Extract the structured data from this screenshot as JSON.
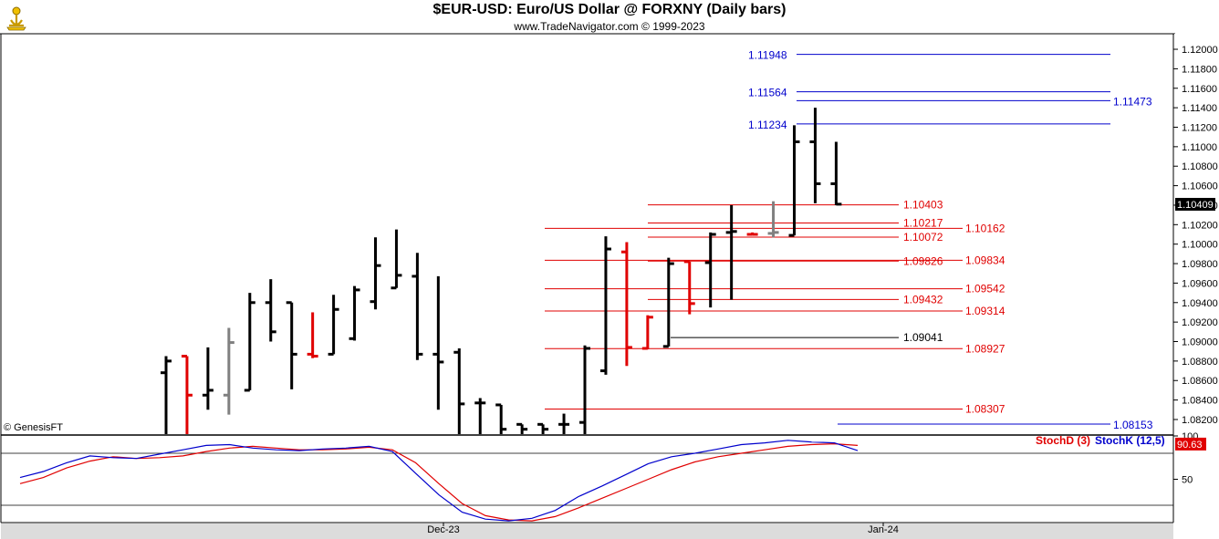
{
  "window": {
    "title": "$EUR-USD:  Euro/US Dollar @ FORXNY  (Daily bars)",
    "subtitle": "www.TradeNavigator.com © 1999-2023",
    "watermark": "© GenesisFT"
  },
  "chart_data": {
    "type": "ohlc",
    "price_axis": {
      "range": [
        1.0805,
        1.1215
      ],
      "ticks": [
        "1.12000",
        "1.11800",
        "1.11600",
        "1.11400",
        "1.11200",
        "1.11000",
        "1.10800",
        "1.10600",
        "1.10400",
        "1.10200",
        "1.10000",
        "1.09800",
        "1.09600",
        "1.09400",
        "1.09200",
        "1.09000",
        "1.08800",
        "1.08600",
        "1.08400",
        "1.08200"
      ],
      "last_price": "1.10409"
    },
    "x_ticks": [
      "Dec-23",
      "Jan-24"
    ],
    "colors": {
      "up": "#000000",
      "down": "#e00000",
      "neutral": "#808080",
      "blue": "#0000cc",
      "red_level": "#e00000",
      "black_level": "#000000"
    },
    "bars": [
      {
        "o": 1.0868,
        "h": 1.0885,
        "l": 1.079,
        "c": 1.088,
        "color": "up"
      },
      {
        "o": 1.0885,
        "h": 1.0885,
        "l": 1.079,
        "c": 1.0845,
        "color": "down"
      },
      {
        "o": 1.0845,
        "h": 1.0894,
        "l": 1.083,
        "c": 1.085,
        "color": "up"
      },
      {
        "o": 1.0845,
        "h": 1.0914,
        "l": 1.0825,
        "c": 1.0899,
        "color": "neutral"
      },
      {
        "o": 1.085,
        "h": 1.095,
        "l": 1.085,
        "c": 1.094,
        "color": "up"
      },
      {
        "o": 1.094,
        "h": 1.0964,
        "l": 1.09,
        "c": 1.091,
        "color": "up"
      },
      {
        "o": 1.094,
        "h": 1.094,
        "l": 1.0851,
        "c": 1.0887,
        "color": "up"
      },
      {
        "o": 1.0887,
        "h": 1.093,
        "l": 1.0883,
        "c": 1.0885,
        "color": "down"
      },
      {
        "o": 1.0887,
        "h": 1.0948,
        "l": 1.0887,
        "c": 1.0933,
        "color": "up"
      },
      {
        "o": 1.0903,
        "h": 1.0957,
        "l": 1.0901,
        "c": 1.0953,
        "color": "up"
      },
      {
        "o": 1.0941,
        "h": 1.1007,
        "l": 1.0933,
        "c": 1.0978,
        "color": "up"
      },
      {
        "o": 1.0955,
        "h": 1.1015,
        "l": 1.0955,
        "c": 1.0968,
        "color": "up"
      },
      {
        "o": 1.0967,
        "h": 1.0991,
        "l": 1.0881,
        "c": 1.0887,
        "color": "up"
      },
      {
        "o": 1.0887,
        "h": 1.0967,
        "l": 1.083,
        "c": 1.0879,
        "color": "up"
      },
      {
        "o": 1.0889,
        "h": 1.0893,
        "l": 1.079,
        "c": 1.0836,
        "color": "up"
      },
      {
        "o": 1.0837,
        "h": 1.0842,
        "l": 1.079,
        "c": 1.0837,
        "color": "up"
      },
      {
        "o": 1.0835,
        "h": 1.0835,
        "l": 1.079,
        "c": 1.081,
        "color": "up"
      },
      {
        "o": 1.0815,
        "h": 1.0815,
        "l": 1.079,
        "c": 1.081,
        "color": "up"
      },
      {
        "o": 1.0815,
        "h": 1.0815,
        "l": 1.079,
        "c": 1.081,
        "color": "up"
      },
      {
        "o": 1.0815,
        "h": 1.0826,
        "l": 1.079,
        "c": 1.0815,
        "color": "up"
      },
      {
        "o": 1.0817,
        "h": 1.0896,
        "l": 1.079,
        "c": 1.0893,
        "color": "up"
      },
      {
        "o": 1.087,
        "h": 1.1008,
        "l": 1.0866,
        "c": 1.0995,
        "color": "up"
      },
      {
        "o": 1.0992,
        "h": 1.1002,
        "l": 1.0875,
        "c": 1.0894,
        "color": "down"
      },
      {
        "o": 1.0893,
        "h": 1.0927,
        "l": 1.0892,
        "c": 1.0925,
        "color": "down"
      },
      {
        "o": 1.0895,
        "h": 1.0986,
        "l": 1.0895,
        "c": 1.098,
        "color": "up"
      },
      {
        "o": 1.0982,
        "h": 1.0982,
        "l": 1.0928,
        "c": 1.0939,
        "color": "down"
      },
      {
        "o": 1.0981,
        "h": 1.1012,
        "l": 1.0935,
        "c": 1.101,
        "color": "up"
      },
      {
        "o": 1.1012,
        "h": 1.104,
        "l": 1.0943,
        "c": 1.1013,
        "color": "up"
      },
      {
        "o": 1.101,
        "h": 1.1012,
        "l": 1.101,
        "c": 1.101,
        "color": "down"
      },
      {
        "o": 1.1011,
        "h": 1.1044,
        "l": 1.1007,
        "c": 1.1012,
        "color": "neutral"
      },
      {
        "o": 1.1009,
        "h": 1.1122,
        "l": 1.1009,
        "c": 1.1105,
        "color": "up"
      },
      {
        "o": 1.1105,
        "h": 1.114,
        "l": 1.1042,
        "c": 1.1062,
        "color": "up"
      },
      {
        "o": 1.1062,
        "h": 1.1105,
        "l": 1.104,
        "c": 1.1041,
        "color": "up"
      }
    ],
    "levels": [
      {
        "value": 1.11948,
        "label": "1.11948",
        "color": "blue",
        "label_side": "left"
      },
      {
        "value": 1.11564,
        "label": "1.11564",
        "color": "blue",
        "label_side": "left"
      },
      {
        "value": 1.11473,
        "label": "1.11473",
        "color": "blue",
        "label_side": "right"
      },
      {
        "value": 1.11234,
        "label": "1.11234",
        "color": "blue",
        "label_side": "left"
      },
      {
        "value": 1.10403,
        "label": "1.10403",
        "color": "red_level",
        "label_side": "left"
      },
      {
        "value": 1.10217,
        "label": "1.10217",
        "color": "red_level",
        "label_side": "left"
      },
      {
        "value": 1.10162,
        "label": "1.10162",
        "color": "red_level",
        "label_side": "right"
      },
      {
        "value": 1.10072,
        "label": "1.10072",
        "color": "red_level",
        "label_side": "left"
      },
      {
        "value": 1.09834,
        "label": "1.09834",
        "color": "red_level",
        "label_side": "right"
      },
      {
        "value": 1.09826,
        "label": "1.09826",
        "color": "red_level",
        "label_side": "left"
      },
      {
        "value": 1.09542,
        "label": "1.09542",
        "color": "red_level",
        "label_side": "right"
      },
      {
        "value": 1.09432,
        "label": "1.09432",
        "color": "red_level",
        "label_side": "left"
      },
      {
        "value": 1.09314,
        "label": "1.09314",
        "color": "red_level",
        "label_side": "right"
      },
      {
        "value": 1.09041,
        "label": "1.09041",
        "color": "black_level",
        "label_side": "left"
      },
      {
        "value": 1.08927,
        "label": "1.08927",
        "color": "red_level",
        "label_side": "right"
      },
      {
        "value": 1.08307,
        "label": "1.08307",
        "color": "red_level",
        "label_side": "right"
      },
      {
        "value": 1.08153,
        "label": "1.08153",
        "color": "blue",
        "label_side": "right"
      }
    ],
    "oscillator": {
      "range": [
        0,
        100
      ],
      "ticks": [
        "100",
        "50"
      ],
      "reference_lines": [
        80,
        20
      ],
      "last_value": "90.63",
      "series": [
        {
          "name": "StochD (3)",
          "color": "#e00000",
          "values": [
            45,
            52,
            63,
            71,
            76,
            74,
            75,
            77,
            82,
            86,
            88,
            86,
            84,
            84,
            85,
            87,
            84,
            69,
            45,
            22,
            8,
            3,
            2,
            7,
            17,
            28,
            39,
            50,
            61,
            70,
            76,
            80,
            84,
            88,
            90,
            91,
            89
          ]
        },
        {
          "name": "StochK (12,5)",
          "color": "#0000cc",
          "values": [
            52,
            59,
            69,
            77,
            75,
            74,
            79,
            84,
            89,
            90,
            86,
            84,
            83,
            85,
            86,
            88,
            82,
            57,
            32,
            12,
            4,
            2,
            5,
            14,
            30,
            42,
            55,
            68,
            76,
            80,
            85,
            90,
            92,
            95,
            93,
            92,
            83
          ]
        }
      ]
    }
  }
}
